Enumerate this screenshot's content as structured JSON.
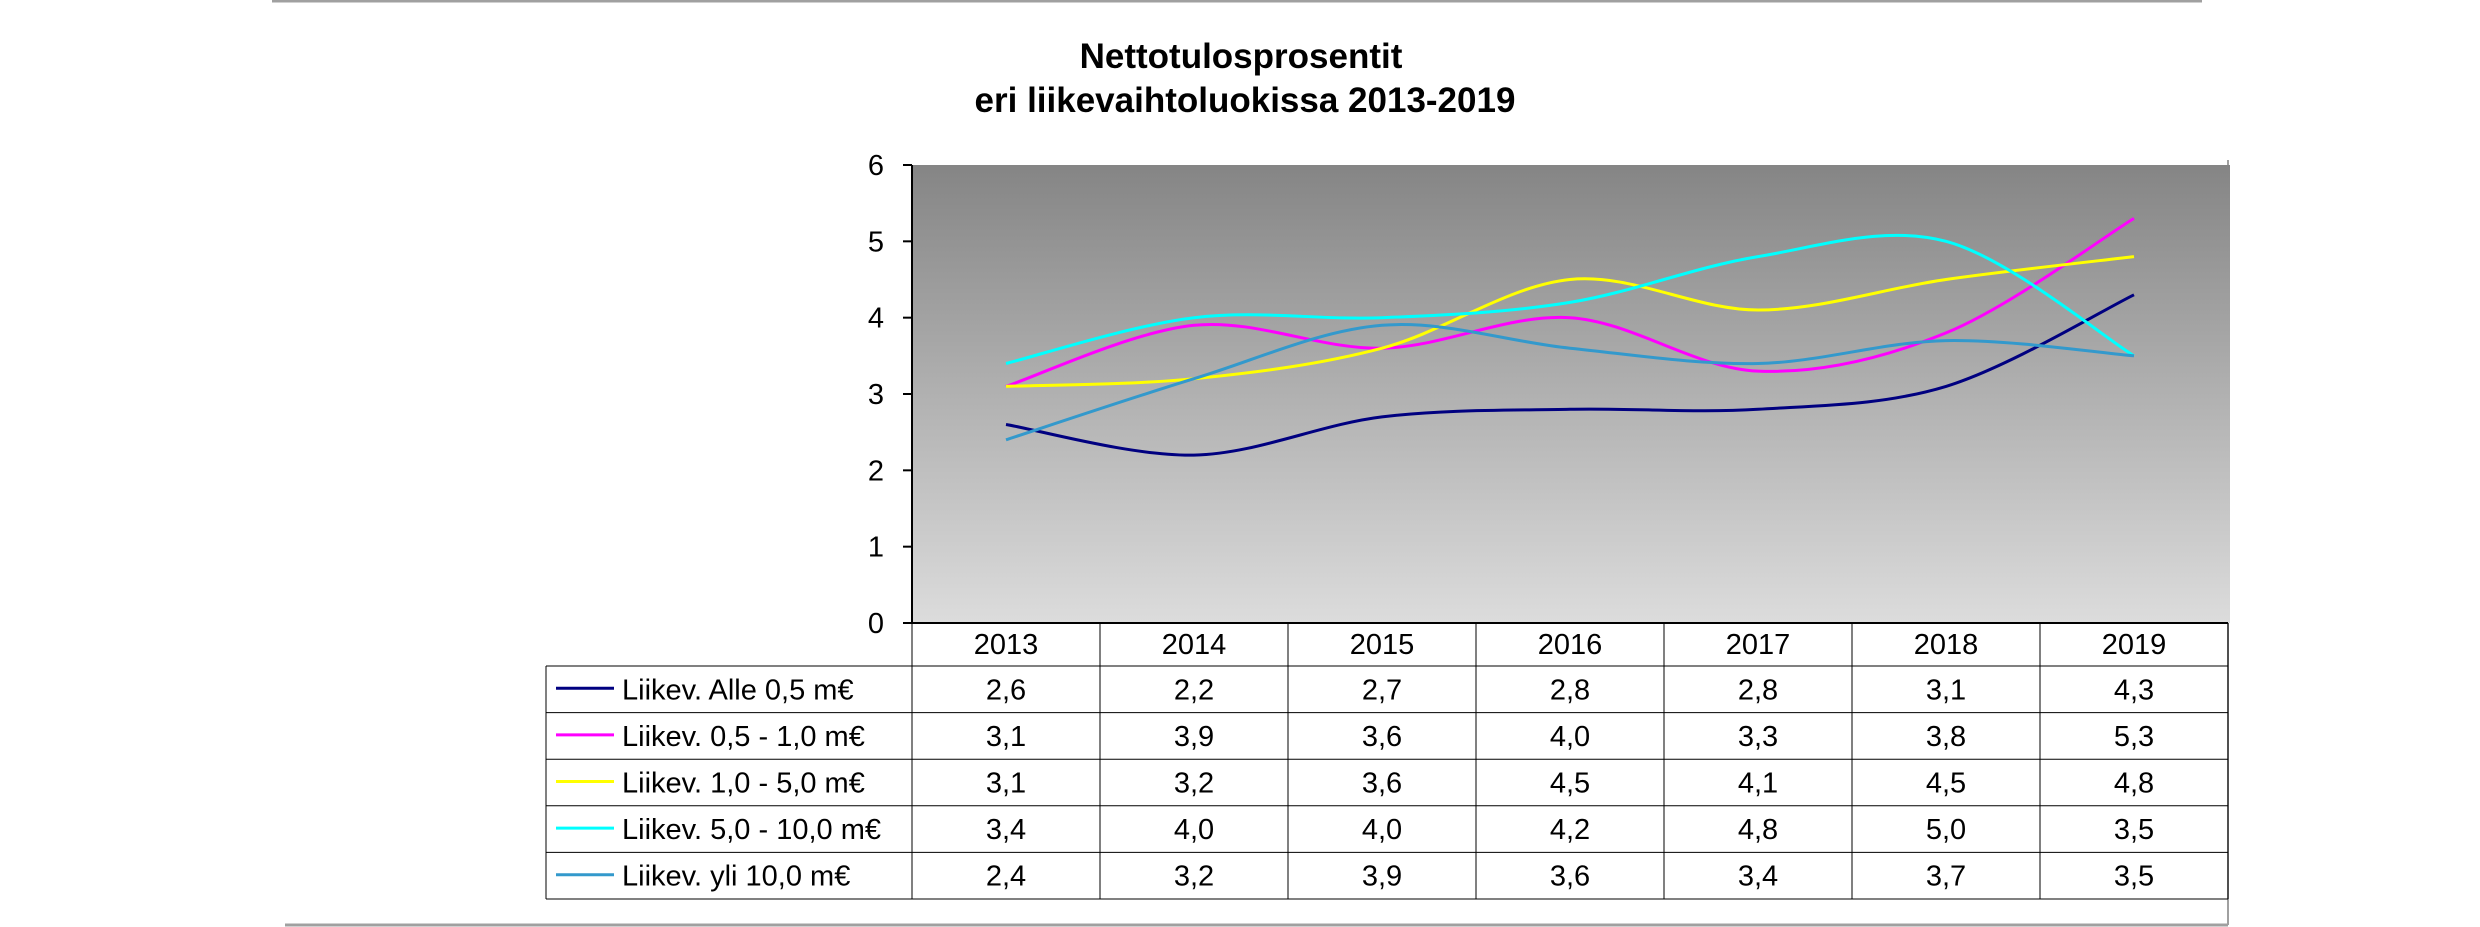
{
  "chart_data": {
    "type": "line",
    "title_lines": [
      "Nettotulosprosentit",
      "eri liikevaihtoluokissa 2013-2019"
    ],
    "categories": [
      "2013",
      "2014",
      "2015",
      "2016",
      "2017",
      "2018",
      "2019"
    ],
    "ylim": [
      0,
      6
    ],
    "yticks": [
      "0",
      "1",
      "2",
      "3",
      "4",
      "5",
      "6"
    ],
    "series": [
      {
        "name": "Liikev. Alle 0,5 m€",
        "color": "#000080",
        "values": [
          2.6,
          2.2,
          2.7,
          2.8,
          2.8,
          3.1,
          4.3
        ],
        "labels": [
          "2,6",
          "2,2",
          "2,7",
          "2,8",
          "2,8",
          "3,1",
          "4,3"
        ]
      },
      {
        "name": "Liikev. 0,5 - 1,0 m€",
        "color": "#ff00ff",
        "values": [
          3.1,
          3.9,
          3.6,
          4.0,
          3.3,
          3.8,
          5.3
        ],
        "labels": [
          "3,1",
          "3,9",
          "3,6",
          "4,0",
          "3,3",
          "3,8",
          "5,3"
        ]
      },
      {
        "name": "Liikev. 1,0 - 5,0 m€",
        "color": "#ffff00",
        "values": [
          3.1,
          3.2,
          3.6,
          4.5,
          4.1,
          4.5,
          4.8
        ],
        "labels": [
          "3,1",
          "3,2",
          "3,6",
          "4,5",
          "4,1",
          "4,5",
          "4,8"
        ]
      },
      {
        "name": "Liikev. 5,0 - 10,0 m€",
        "color": "#00ffff",
        "values": [
          3.4,
          4.0,
          4.0,
          4.2,
          4.8,
          5.0,
          3.5
        ],
        "labels": [
          "3,4",
          "4,0",
          "4,0",
          "4,2",
          "4,8",
          "5,0",
          "3,5"
        ]
      },
      {
        "name": "Liikev. yli 10,0 m€",
        "color": "#3399cc",
        "values": [
          2.4,
          3.2,
          3.9,
          3.6,
          3.4,
          3.7,
          3.5
        ],
        "labels": [
          "2,4",
          "3,2",
          "3,9",
          "3,6",
          "3,4",
          "3,7",
          "3,5"
        ]
      }
    ],
    "grid": false,
    "legend": "data-table-below"
  }
}
